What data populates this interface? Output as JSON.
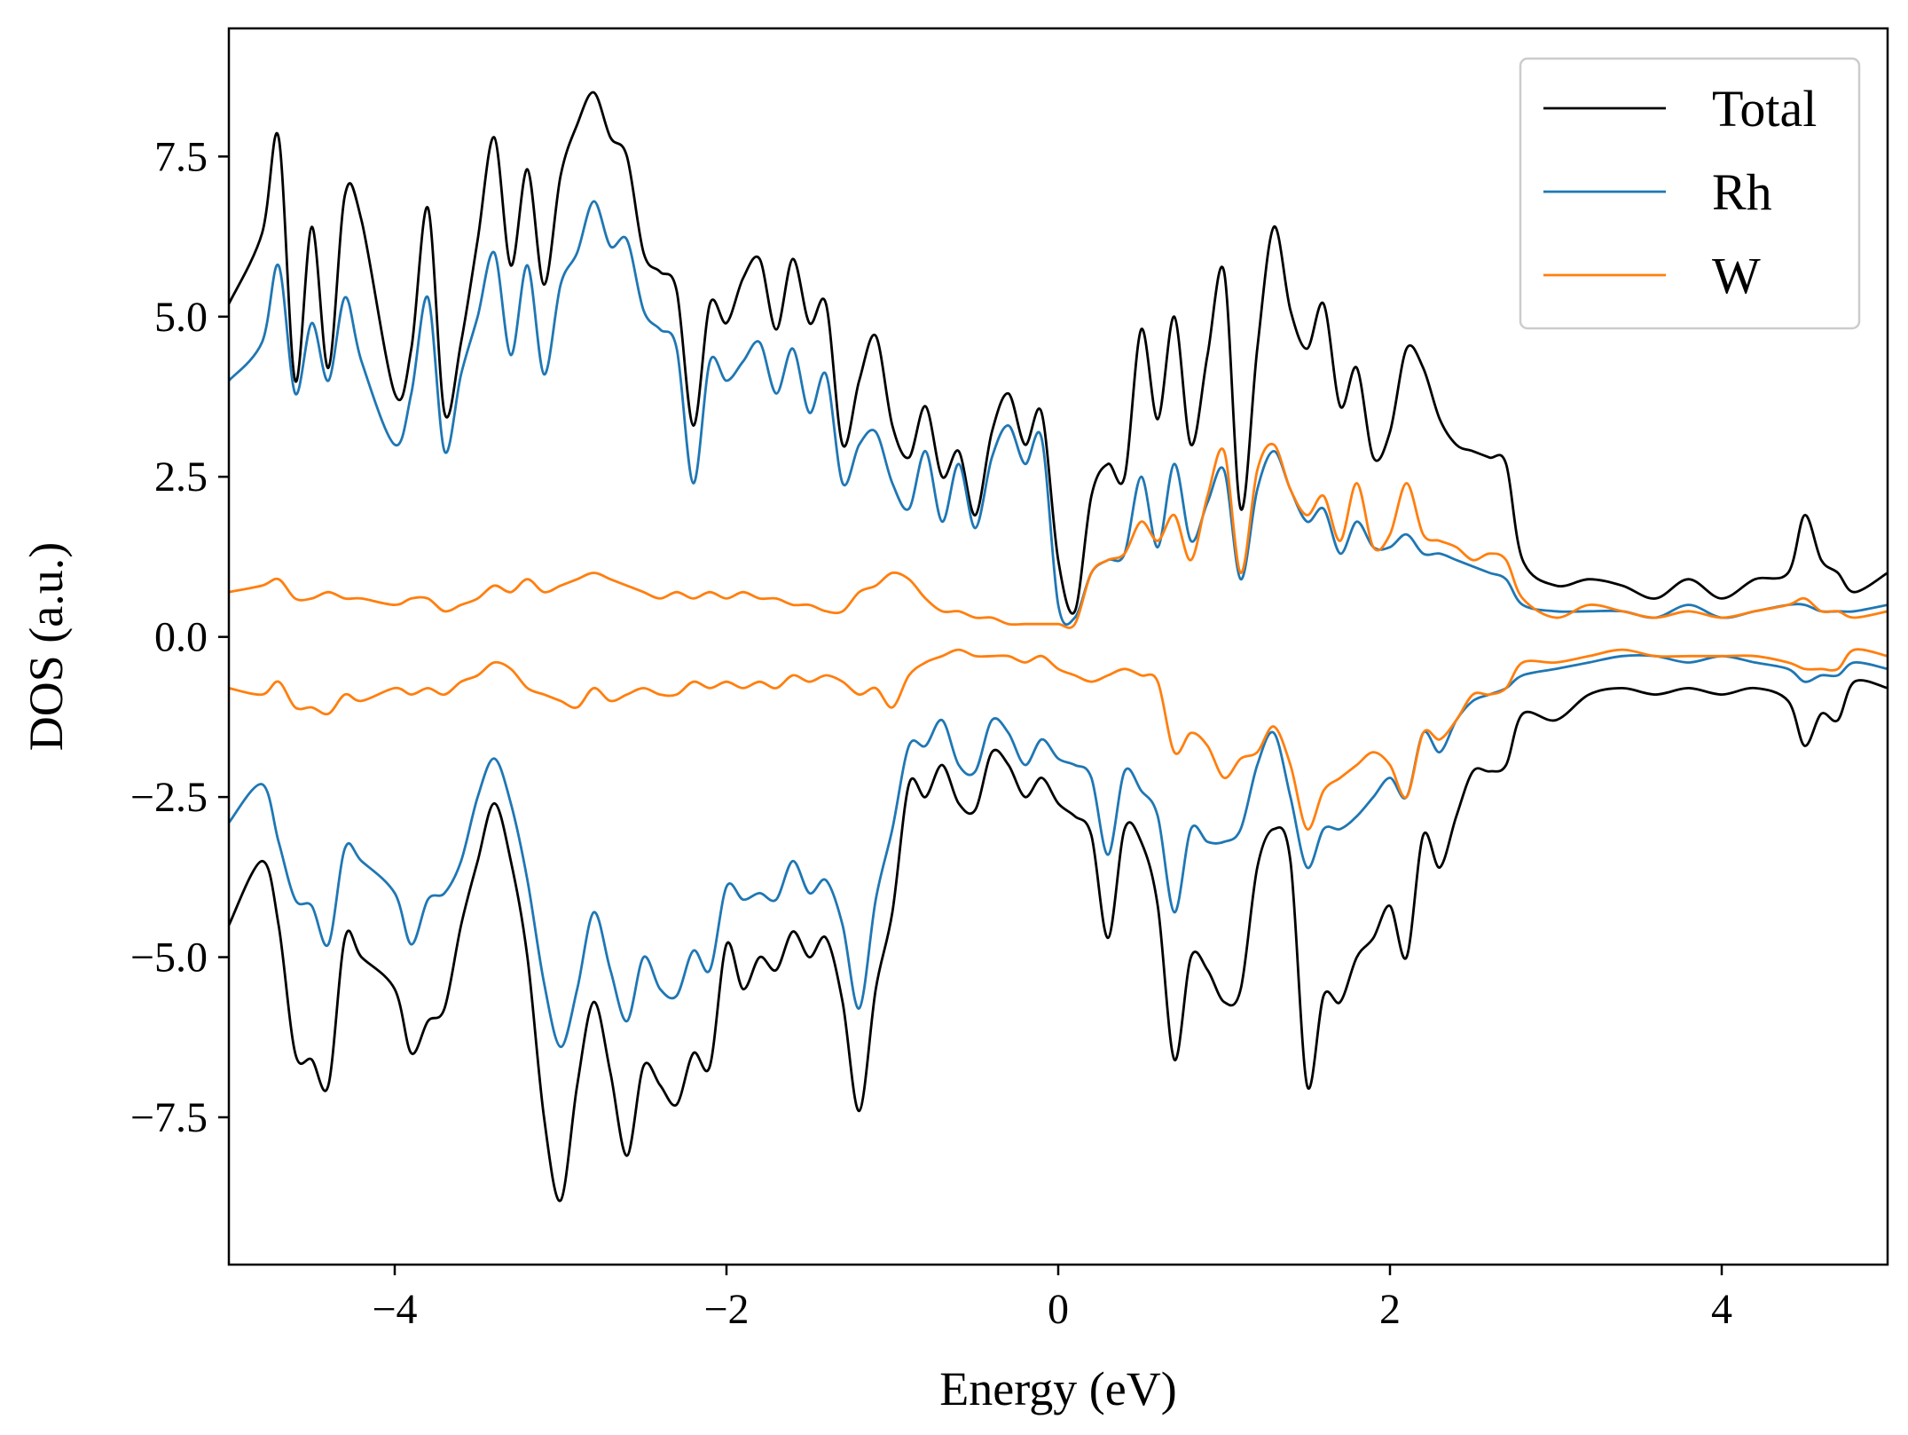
{
  "chart_data": {
    "type": "line",
    "xlabel": "Energy (eV)",
    "ylabel": "DOS (a.u.)",
    "xlim": [
      -5,
      5
    ],
    "ylim": [
      -9.8,
      9.5
    ],
    "xticks": [
      -4,
      -2,
      0,
      2,
      4
    ],
    "xtick_labels": [
      "−4",
      "−2",
      "0",
      "2",
      "4"
    ],
    "yticks": [
      -7.5,
      -5.0,
      -2.5,
      0.0,
      2.5,
      5.0,
      7.5
    ],
    "ytick_labels": [
      "−7.5",
      "−5.0",
      "−2.5",
      "0.0",
      "2.5",
      "5.0",
      "7.5"
    ],
    "grid": false,
    "legend_position": "top-right",
    "x": [
      -5.0,
      -4.8,
      -4.7,
      -4.6,
      -4.5,
      -4.4,
      -4.3,
      -4.2,
      -4.0,
      -3.9,
      -3.8,
      -3.7,
      -3.6,
      -3.5,
      -3.4,
      -3.3,
      -3.2,
      -3.1,
      -3.0,
      -2.9,
      -2.8,
      -2.7,
      -2.6,
      -2.5,
      -2.4,
      -2.3,
      -2.2,
      -2.1,
      -2.0,
      -1.9,
      -1.8,
      -1.7,
      -1.6,
      -1.5,
      -1.4,
      -1.3,
      -1.2,
      -1.1,
      -1.0,
      -0.9,
      -0.8,
      -0.7,
      -0.6,
      -0.5,
      -0.4,
      -0.3,
      -0.2,
      -0.1,
      0.0,
      0.1,
      0.2,
      0.3,
      0.4,
      0.5,
      0.6,
      0.7,
      0.8,
      0.9,
      1.0,
      1.1,
      1.2,
      1.3,
      1.4,
      1.5,
      1.6,
      1.7,
      1.8,
      1.9,
      2.0,
      2.1,
      2.2,
      2.3,
      2.4,
      2.5,
      2.6,
      2.7,
      2.8,
      3.0,
      3.2,
      3.4,
      3.6,
      3.8,
      4.0,
      4.2,
      4.4,
      4.5,
      4.6,
      4.7,
      4.8,
      5.0
    ],
    "series": [
      {
        "name": "Total",
        "color": "#000000",
        "up": [
          5.2,
          6.3,
          7.8,
          4.0,
          6.4,
          4.2,
          6.9,
          6.5,
          3.8,
          4.5,
          6.7,
          3.5,
          4.6,
          6.2,
          7.8,
          5.8,
          7.3,
          5.5,
          7.2,
          8.0,
          8.5,
          7.8,
          7.5,
          6.0,
          5.7,
          5.4,
          3.3,
          5.2,
          4.9,
          5.6,
          5.9,
          4.8,
          5.9,
          4.9,
          5.2,
          3.0,
          4.0,
          4.7,
          3.3,
          2.8,
          3.6,
          2.5,
          2.9,
          1.9,
          3.2,
          3.8,
          3.0,
          3.5,
          1.2,
          0.4,
          2.2,
          2.7,
          2.5,
          4.8,
          3.4,
          5.0,
          3.0,
          4.4,
          5.7,
          2.0,
          4.5,
          6.4,
          5.1,
          4.5,
          5.2,
          3.6,
          4.2,
          2.8,
          3.2,
          4.5,
          4.2,
          3.4,
          3.0,
          2.9,
          2.8,
          2.7,
          1.2,
          0.8,
          0.9,
          0.8,
          0.6,
          0.9,
          0.6,
          0.9,
          1.0,
          1.9,
          1.2,
          1.0,
          0.7,
          1.0
        ],
        "down": [
          -4.5,
          -3.5,
          -4.5,
          -6.5,
          -6.6,
          -7.0,
          -4.7,
          -5.0,
          -5.5,
          -6.5,
          -6.0,
          -5.8,
          -4.5,
          -3.5,
          -2.6,
          -3.5,
          -5.0,
          -7.5,
          -8.8,
          -7.0,
          -5.7,
          -6.8,
          -8.1,
          -6.7,
          -7.0,
          -7.3,
          -6.5,
          -6.7,
          -4.8,
          -5.5,
          -5.0,
          -5.2,
          -4.6,
          -5.0,
          -4.7,
          -5.7,
          -7.4,
          -5.5,
          -4.3,
          -2.3,
          -2.5,
          -2.0,
          -2.6,
          -2.7,
          -1.8,
          -2.0,
          -2.5,
          -2.2,
          -2.6,
          -2.8,
          -3.1,
          -4.7,
          -3.0,
          -3.2,
          -4.2,
          -6.6,
          -5.0,
          -5.2,
          -5.7,
          -5.5,
          -3.6,
          -3.0,
          -3.5,
          -7.0,
          -5.6,
          -5.7,
          -5.0,
          -4.7,
          -4.2,
          -5.0,
          -3.1,
          -3.6,
          -2.8,
          -2.1,
          -2.1,
          -2.0,
          -1.2,
          -1.3,
          -0.9,
          -0.8,
          -0.9,
          -0.8,
          -0.9,
          -0.8,
          -1.0,
          -1.7,
          -1.2,
          -1.3,
          -0.7,
          -0.8
        ]
      },
      {
        "name": "Rh",
        "color": "#1f77b4",
        "up": [
          4.0,
          4.6,
          5.8,
          3.8,
          4.9,
          4.0,
          5.3,
          4.3,
          3.0,
          3.8,
          5.3,
          2.9,
          4.1,
          5.0,
          6.0,
          4.4,
          5.8,
          4.1,
          5.5,
          6.0,
          6.8,
          6.1,
          6.2,
          5.1,
          4.8,
          4.5,
          2.4,
          4.3,
          4.0,
          4.3,
          4.6,
          3.8,
          4.5,
          3.5,
          4.1,
          2.4,
          3.0,
          3.2,
          2.4,
          2.0,
          2.9,
          1.8,
          2.7,
          1.7,
          2.8,
          3.3,
          2.7,
          3.1,
          0.5,
          0.3,
          1.0,
          1.2,
          1.3,
          2.5,
          1.4,
          2.7,
          1.5,
          2.1,
          2.6,
          0.9,
          2.3,
          2.9,
          2.3,
          1.8,
          2.0,
          1.3,
          1.8,
          1.4,
          1.4,
          1.6,
          1.3,
          1.3,
          1.2,
          1.1,
          1.0,
          0.9,
          0.5,
          0.4,
          0.4,
          0.4,
          0.3,
          0.5,
          0.3,
          0.4,
          0.5,
          0.5,
          0.4,
          0.4,
          0.4,
          0.5
        ],
        "down": [
          -2.9,
          -2.3,
          -3.2,
          -4.1,
          -4.2,
          -4.8,
          -3.3,
          -3.5,
          -4.0,
          -4.8,
          -4.1,
          -4.0,
          -3.5,
          -2.5,
          -1.9,
          -2.6,
          -3.8,
          -5.4,
          -6.4,
          -5.5,
          -4.3,
          -5.2,
          -6.0,
          -5.0,
          -5.5,
          -5.6,
          -4.9,
          -5.2,
          -3.9,
          -4.1,
          -4.0,
          -4.1,
          -3.5,
          -4.0,
          -3.8,
          -4.5,
          -5.8,
          -4.1,
          -3.0,
          -1.7,
          -1.7,
          -1.3,
          -2.0,
          -2.1,
          -1.3,
          -1.5,
          -2.0,
          -1.6,
          -1.9,
          -2.0,
          -2.2,
          -3.4,
          -2.1,
          -2.4,
          -2.8,
          -4.3,
          -3.0,
          -3.2,
          -3.2,
          -3.0,
          -2.0,
          -1.5,
          -2.5,
          -3.6,
          -3.0,
          -3.0,
          -2.8,
          -2.5,
          -2.2,
          -2.5,
          -1.5,
          -1.8,
          -1.3,
          -1.0,
          -0.9,
          -0.8,
          -0.6,
          -0.5,
          -0.4,
          -0.3,
          -0.3,
          -0.4,
          -0.3,
          -0.4,
          -0.5,
          -0.7,
          -0.6,
          -0.6,
          -0.4,
          -0.5
        ]
      },
      {
        "name": "W",
        "color": "#ff7f0e",
        "up": [
          0.7,
          0.8,
          0.9,
          0.6,
          0.6,
          0.7,
          0.6,
          0.6,
          0.5,
          0.6,
          0.6,
          0.4,
          0.5,
          0.6,
          0.8,
          0.7,
          0.9,
          0.7,
          0.8,
          0.9,
          1.0,
          0.9,
          0.8,
          0.7,
          0.6,
          0.7,
          0.6,
          0.7,
          0.6,
          0.7,
          0.6,
          0.6,
          0.5,
          0.5,
          0.4,
          0.4,
          0.7,
          0.8,
          1.0,
          0.9,
          0.6,
          0.4,
          0.4,
          0.3,
          0.3,
          0.2,
          0.2,
          0.2,
          0.2,
          0.2,
          1.0,
          1.2,
          1.3,
          1.8,
          1.5,
          1.9,
          1.2,
          2.2,
          2.9,
          1.0,
          2.6,
          3.0,
          2.3,
          1.9,
          2.2,
          1.5,
          2.4,
          1.4,
          1.6,
          2.4,
          1.6,
          1.5,
          1.4,
          1.2,
          1.3,
          1.2,
          0.6,
          0.3,
          0.5,
          0.4,
          0.3,
          0.4,
          0.3,
          0.4,
          0.5,
          0.6,
          0.4,
          0.4,
          0.3,
          0.4
        ],
        "down": [
          -0.8,
          -0.9,
          -0.7,
          -1.1,
          -1.1,
          -1.2,
          -0.9,
          -1.0,
          -0.8,
          -0.9,
          -0.8,
          -0.9,
          -0.7,
          -0.6,
          -0.4,
          -0.5,
          -0.8,
          -0.9,
          -1.0,
          -1.1,
          -0.8,
          -1.0,
          -0.9,
          -0.8,
          -0.9,
          -0.9,
          -0.7,
          -0.8,
          -0.7,
          -0.8,
          -0.7,
          -0.8,
          -0.6,
          -0.7,
          -0.6,
          -0.7,
          -0.9,
          -0.8,
          -1.1,
          -0.6,
          -0.4,
          -0.3,
          -0.2,
          -0.3,
          -0.3,
          -0.3,
          -0.4,
          -0.3,
          -0.5,
          -0.6,
          -0.7,
          -0.6,
          -0.5,
          -0.6,
          -0.7,
          -1.8,
          -1.5,
          -1.7,
          -2.2,
          -1.9,
          -1.8,
          -1.4,
          -2.0,
          -3.0,
          -2.4,
          -2.2,
          -2.0,
          -1.8,
          -2.0,
          -2.5,
          -1.5,
          -1.6,
          -1.3,
          -0.9,
          -0.9,
          -0.8,
          -0.4,
          -0.4,
          -0.3,
          -0.2,
          -0.3,
          -0.3,
          -0.3,
          -0.3,
          -0.4,
          -0.5,
          -0.5,
          -0.5,
          -0.2,
          -0.3
        ]
      }
    ]
  }
}
